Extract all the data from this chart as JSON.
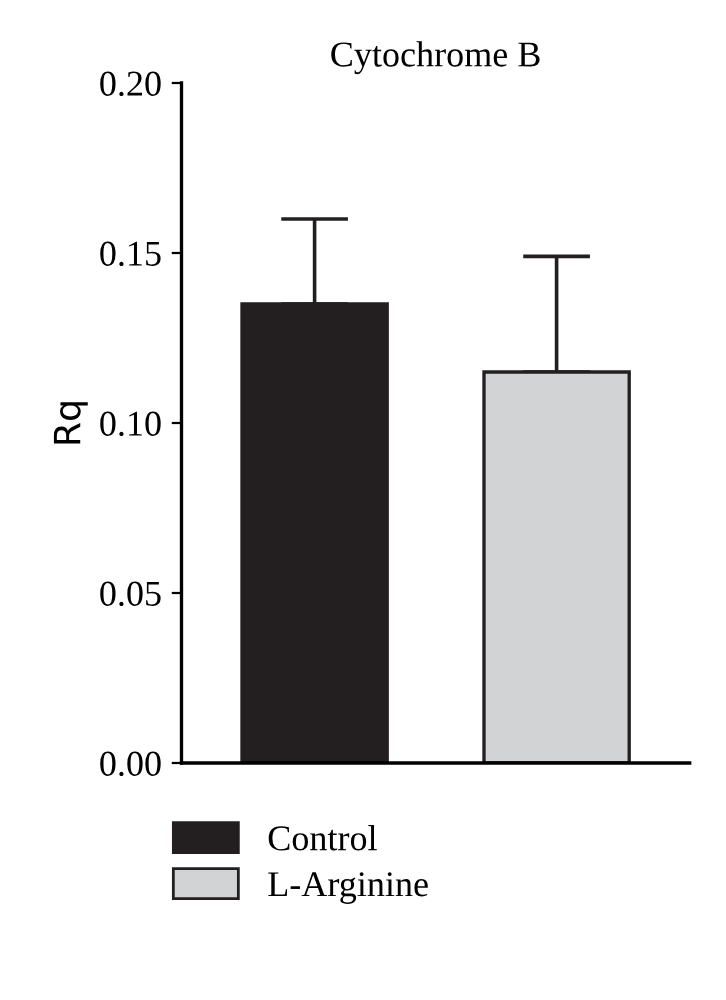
{
  "chart_data": {
    "type": "bar",
    "title": "Cytochrome B",
    "ylabel": "Rq",
    "categories": [
      null,
      null
    ],
    "series": [
      {
        "name": "Control",
        "color": "#231f20",
        "values": [
          0.135,
          null
        ],
        "errors": [
          [
            0.135,
            0.16
          ],
          null
        ]
      },
      {
        "name": "L-Arginine",
        "color": "#d1d3d4",
        "values": [
          null,
          0.115
        ],
        "errors": [
          null,
          [
            0.115,
            0.149
          ]
        ]
      }
    ],
    "ylim": [
      0,
      0.2
    ],
    "yticks": [
      {
        "value": 0,
        "label": "0.00"
      },
      {
        "value": 0.05,
        "label": "0.05"
      },
      {
        "value": 0.1,
        "label": "0.10"
      },
      {
        "value": 0.15,
        "label": "0.15"
      },
      {
        "value": 0.2,
        "label": "0.20"
      }
    ],
    "grid": false,
    "legend": "bottom"
  }
}
